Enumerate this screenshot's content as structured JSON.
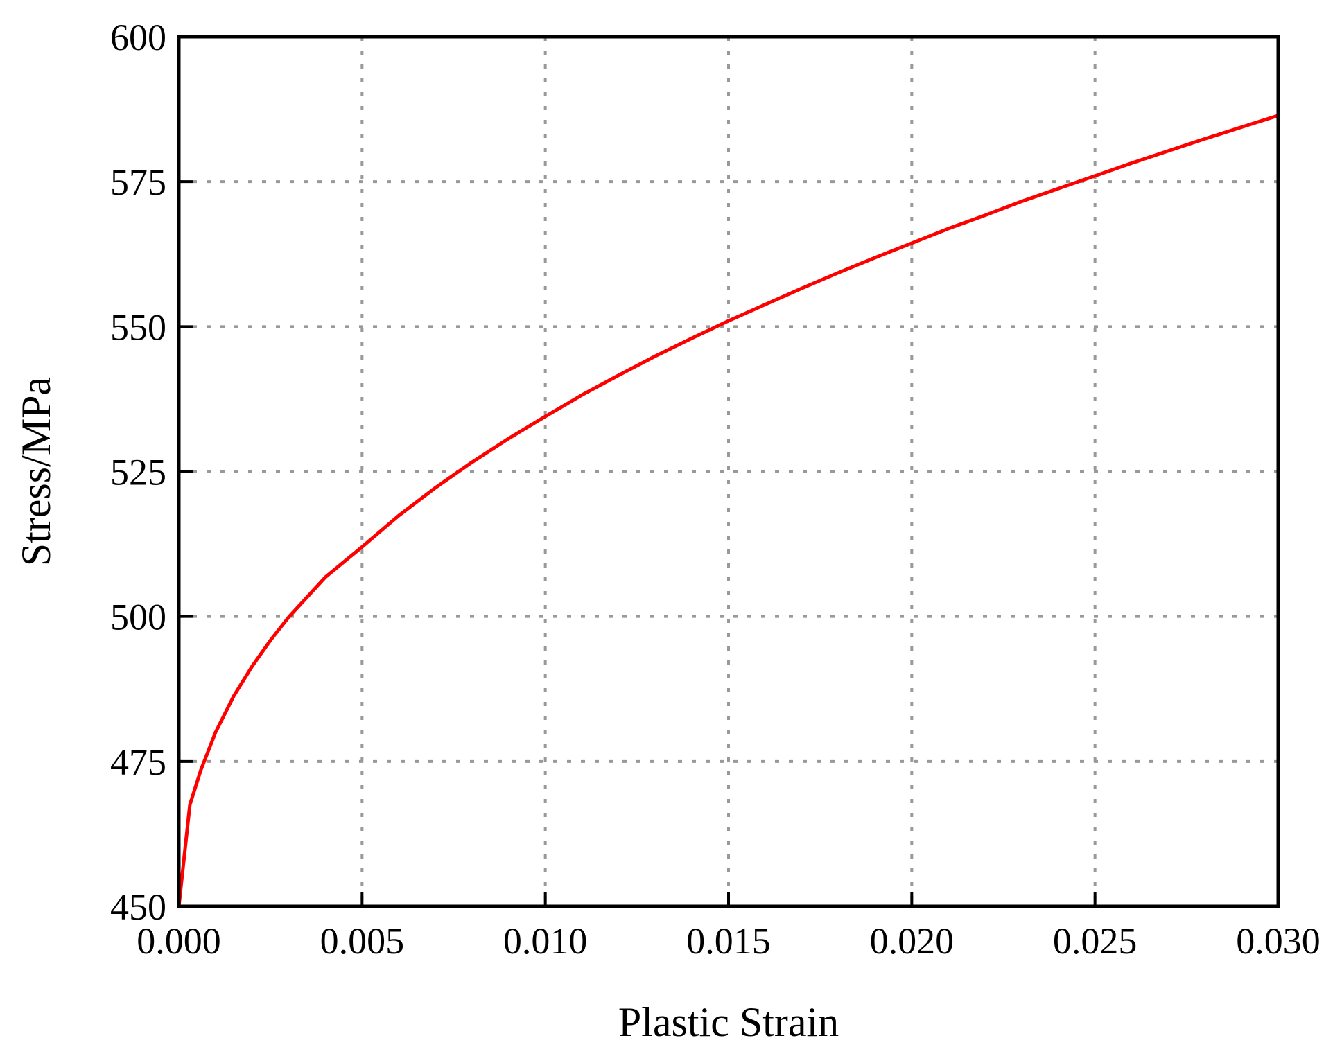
{
  "chart_data": {
    "type": "line",
    "title": "",
    "xlabel": "Plastic Strain",
    "ylabel": "Stress/MPa",
    "xlim": [
      0.0,
      0.03
    ],
    "ylim": [
      450,
      600
    ],
    "x_ticks": [
      "0.000",
      "0.005",
      "0.010",
      "0.015",
      "0.020",
      "0.025",
      "0.030"
    ],
    "y_ticks": [
      "450",
      "475",
      "500",
      "525",
      "550",
      "575",
      "600"
    ],
    "grid": true,
    "legend": "none",
    "series": [
      {
        "color": "#ff0000",
        "x": [
          0.0,
          0.0003,
          0.0006,
          0.001,
          0.0015,
          0.002,
          0.0025,
          0.003,
          0.004,
          0.005,
          0.006,
          0.007,
          0.008,
          0.009,
          0.01,
          0.011,
          0.012,
          0.013,
          0.014,
          0.015,
          0.016,
          0.017,
          0.018,
          0.019,
          0.02,
          0.021,
          0.022,
          0.023,
          0.024,
          0.025,
          0.026,
          0.027,
          0.028,
          0.029,
          0.03
        ],
        "y": [
          450,
          467.5,
          473.5,
          480,
          486.3,
          491.4,
          495.9,
          499.9,
          506.8,
          512.0,
          517.4,
          522.2,
          526.6,
          530.7,
          534.5,
          538.2,
          541.6,
          544.9,
          548.0,
          551.0,
          553.8,
          556.6,
          559.3,
          561.9,
          564.4,
          566.9,
          569.2,
          571.6,
          573.8,
          576.0,
          578.2,
          580.3,
          582.4,
          584.4,
          586.4
        ]
      }
    ]
  }
}
